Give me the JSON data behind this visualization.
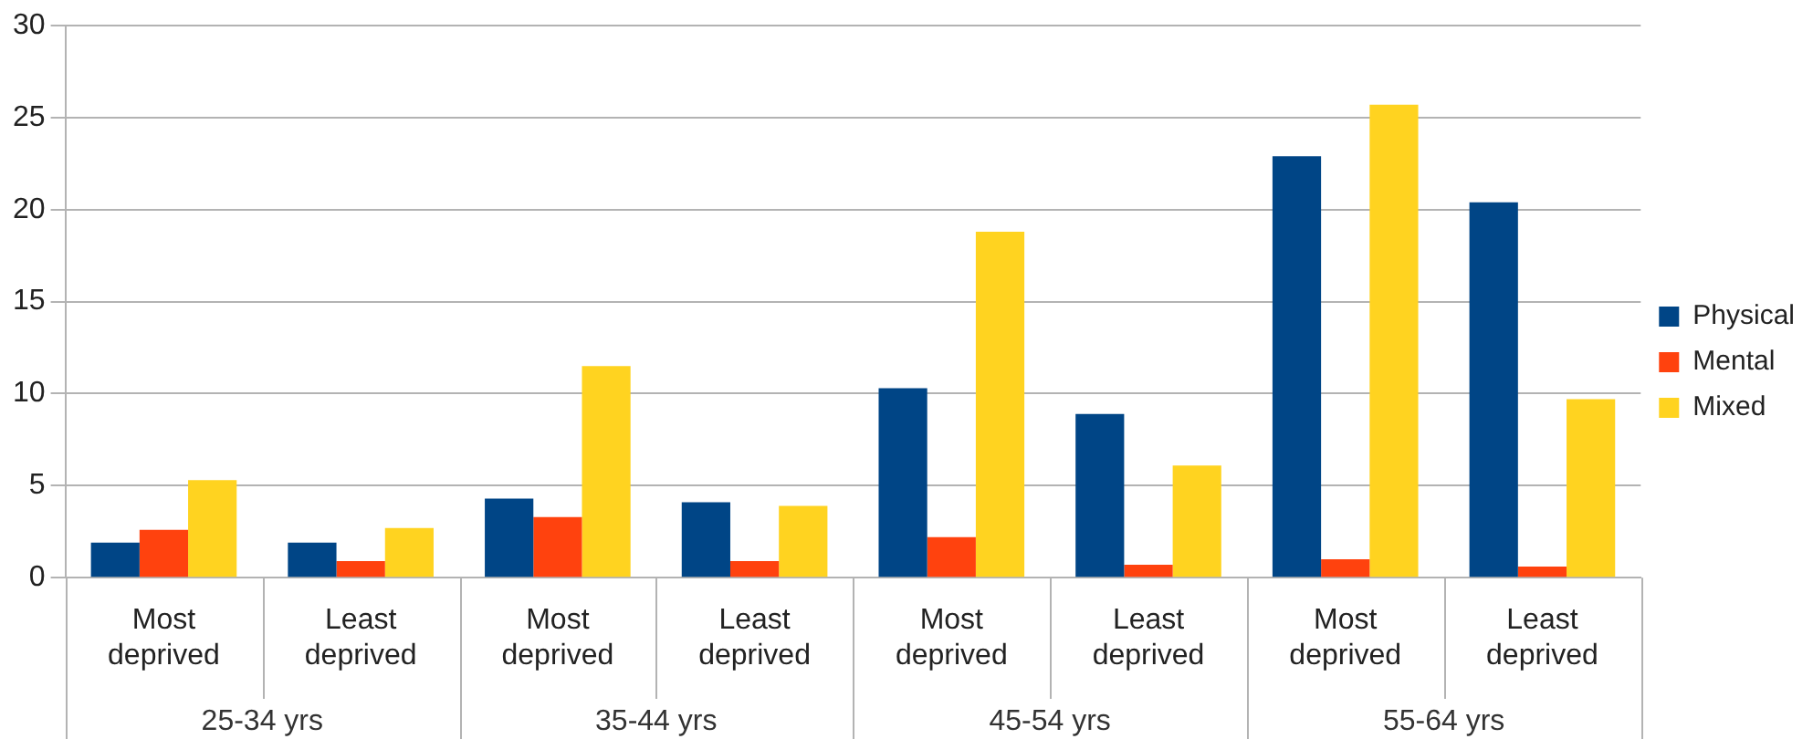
{
  "chart_data": {
    "type": "bar",
    "categories": [
      "Most deprived",
      "Least deprived",
      "Most deprived",
      "Least deprived",
      "Most deprived",
      "Least deprived",
      "Most deprived",
      "Least deprived"
    ],
    "series": [
      {
        "name": "Physical",
        "color": "#004586",
        "values": [
          1.9,
          1.9,
          4.3,
          4.1,
          10.3,
          8.9,
          22.9,
          20.4
        ]
      },
      {
        "name": "Mental",
        "color": "#ff420e",
        "values": [
          2.6,
          0.9,
          3.3,
          0.9,
          2.2,
          0.7,
          1.0,
          0.6
        ]
      },
      {
        "name": "Mixed",
        "color": "#ffd320",
        "values": [
          5.3,
          2.7,
          11.5,
          3.9,
          18.8,
          6.1,
          25.7,
          9.7
        ]
      }
    ],
    "annotations": [
      "25-34 yrs",
      "35-44 yrs",
      "45-54 yrs",
      "55-64 yrs"
    ],
    "ylim": [
      0,
      30
    ],
    "yticks": [
      0,
      5,
      10,
      15,
      20,
      25,
      30
    ],
    "grid": "y",
    "legend": "right"
  }
}
